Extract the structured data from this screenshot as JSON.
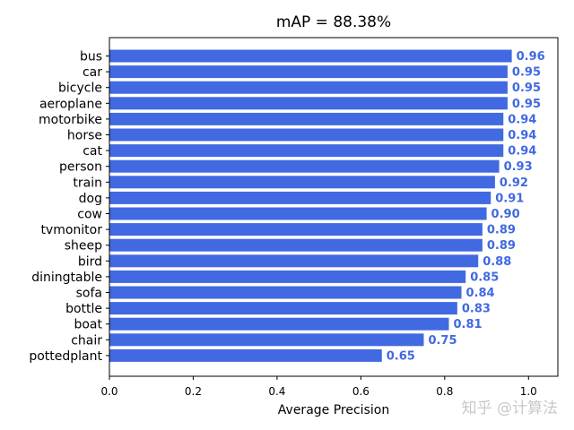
{
  "chart_data": {
    "type": "bar",
    "orientation": "horizontal",
    "title": "mAP = 88.38%",
    "xlabel": "Average Precision",
    "ylabel": "",
    "xlim": [
      0,
      1.07
    ],
    "xticks": [
      "0.0",
      "0.2",
      "0.4",
      "0.6",
      "0.8",
      "1.0"
    ],
    "bar_color": "#4169e1",
    "label_color": "#4169e1",
    "categories": [
      "bus",
      "car",
      "bicycle",
      "aeroplane",
      "motorbike",
      "horse",
      "cat",
      "person",
      "train",
      "dog",
      "cow",
      "tvmonitor",
      "sheep",
      "bird",
      "diningtable",
      "sofa",
      "bottle",
      "boat",
      "chair",
      "pottedplant"
    ],
    "values": [
      0.96,
      0.95,
      0.95,
      0.95,
      0.94,
      0.94,
      0.94,
      0.93,
      0.92,
      0.91,
      0.9,
      0.89,
      0.89,
      0.88,
      0.85,
      0.84,
      0.83,
      0.81,
      0.75,
      0.65
    ],
    "value_labels": [
      "0.96",
      "0.95",
      "0.95",
      "0.95",
      "0.94",
      "0.94",
      "0.94",
      "0.93",
      "0.92",
      "0.91",
      "0.90",
      "0.89",
      "0.89",
      "0.88",
      "0.85",
      "0.84",
      "0.83",
      "0.81",
      "0.75",
      "0.65"
    ],
    "grid": false,
    "legend": "none"
  },
  "watermark": "知乎 @计算法"
}
